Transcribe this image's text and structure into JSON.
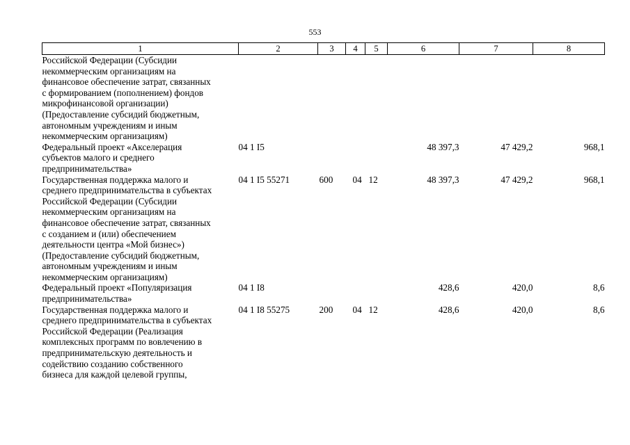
{
  "page_number": "553",
  "headers": [
    "1",
    "2",
    "3",
    "4",
    "5",
    "6",
    "7",
    "8"
  ],
  "rows": [
    {
      "name_lines": [
        "Российской Федерации (Субсидии",
        "некоммерческим организациям на",
        "финансовое обеспечение затрат, связанных",
        "с формированием (пополнением) фондов",
        "микрофинансовой организации)",
        "(Предоставление субсидий бюджетным,",
        "автономным учреждениям и иным",
        "некоммерческим организациям)"
      ],
      "code": "",
      "vr": "",
      "rz": "",
      "pr": "",
      "v6": "",
      "v7": "",
      "v8": ""
    },
    {
      "name_lines": [
        "Федеральный проект «Акселерация",
        "субъектов малого и среднего",
        "предпринимательства»"
      ],
      "code": "04 1 I5",
      "vr": "",
      "rz": "",
      "pr": "",
      "v6": "48 397,3",
      "v7": "47 429,2",
      "v8": "968,1"
    },
    {
      "name_lines": [
        "Государственная поддержка малого и",
        "среднего предпринимательства в субъектах",
        "Российской Федерации (Субсидии",
        "некоммерческим организациям на",
        "финансовое обеспечение затрат, связанных",
        "с созданием и (или) обеспечением",
        "деятельности центра «Мой бизнес»)",
        "(Предоставление субсидий бюджетным,",
        "автономным учреждениям и иным",
        "некоммерческим организациям)"
      ],
      "code": "04 1 I5 55271",
      "vr": "600",
      "rz": "04",
      "pr": "12",
      "v6": "48 397,3",
      "v7": "47 429,2",
      "v8": "968,1"
    },
    {
      "name_lines": [
        "Федеральный проект «Популяризация",
        "предпринимательства»"
      ],
      "code": "04 1 I8",
      "vr": "",
      "rz": "",
      "pr": "",
      "v6": "428,6",
      "v7": "420,0",
      "v8": "8,6"
    },
    {
      "name_lines": [
        "Государственная поддержка малого и",
        "среднего предпринимательства в субъектах",
        "Российской Федерации (Реализация",
        "комплексных программ по вовлечению в",
        "предпринимательскую деятельность и",
        "содействию созданию собственного",
        "бизнеса для каждой целевой группы,"
      ],
      "code": "04 1 I8 55275",
      "vr": "200",
      "rz": "04",
      "pr": "12",
      "v6": "428,6",
      "v7": "420,0",
      "v8": "8,6"
    }
  ]
}
